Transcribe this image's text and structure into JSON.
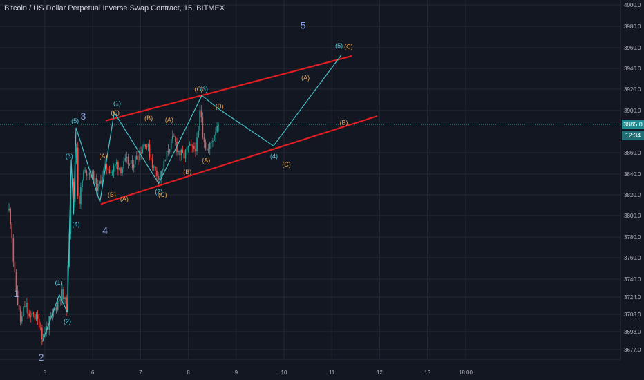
{
  "header": {
    "title": "Bitcoin / US Dollar Perpetual Inverse Swap Contract, 15, BITMEX"
  },
  "price_axis": {
    "current_price": "3885.0",
    "countdown": "12:34"
  },
  "colors": {
    "background": "#131722",
    "grid": "#242833",
    "axis_text": "#b2b5be",
    "candle_up": "#26a69a",
    "candle_down": "#ef5350",
    "wave_line": "#47c2c8",
    "channel": "#e01e22",
    "label_cyan": "#4dd0e1",
    "label_orange": "#e8a34f",
    "label_big": "#8ca2e6",
    "price_line": "#26a69a"
  },
  "chart_data": {
    "type": "candlestick",
    "title": "Bitcoin / US Dollar Perpetual Inverse Swap Contract, 15, BITMEX",
    "x_ticks": [
      "5",
      "6",
      "7",
      "8",
      "9",
      "10",
      "11",
      "12",
      "13",
      "18:00"
    ],
    "y_ticks": [
      "4000.0",
      "3980.0",
      "3960.0",
      "3940.0",
      "3920.0",
      "3900.0",
      "3885.0",
      "3860.0",
      "3840.0",
      "3820.0",
      "3800.0",
      "3780.0",
      "3760.0",
      "3740.0",
      "3724.0",
      "3708.0",
      "3693.0",
      "3677.0"
    ],
    "ylim": [
      3670,
      4003
    ],
    "current_price": 3885.0,
    "price_path": [
      {
        "x": 4.25,
        "y": 3805
      },
      {
        "x": 4.3,
        "y": 3790
      },
      {
        "x": 4.35,
        "y": 3750
      },
      {
        "x": 4.4,
        "y": 3730
      },
      {
        "x": 4.45,
        "y": 3712
      },
      {
        "x": 4.5,
        "y": 3700
      },
      {
        "x": 4.55,
        "y": 3712
      },
      {
        "x": 4.6,
        "y": 3718
      },
      {
        "x": 4.65,
        "y": 3708
      },
      {
        "x": 4.7,
        "y": 3702
      },
      {
        "x": 4.75,
        "y": 3712
      },
      {
        "x": 4.8,
        "y": 3705
      },
      {
        "x": 4.9,
        "y": 3700
      },
      {
        "x": 4.95,
        "y": 3688
      },
      {
        "x": 5.05,
        "y": 3698
      },
      {
        "x": 5.15,
        "y": 3706
      },
      {
        "x": 5.25,
        "y": 3718
      },
      {
        "x": 5.35,
        "y": 3728
      },
      {
        "x": 5.45,
        "y": 3715
      },
      {
        "x": 5.5,
        "y": 3770
      },
      {
        "x": 5.55,
        "y": 3852
      },
      {
        "x": 5.6,
        "y": 3810
      },
      {
        "x": 5.65,
        "y": 3880
      },
      {
        "x": 5.7,
        "y": 3808
      },
      {
        "x": 5.8,
        "y": 3840
      },
      {
        "x": 5.9,
        "y": 3843
      },
      {
        "x": 6.0,
        "y": 3838
      },
      {
        "x": 6.1,
        "y": 3825
      },
      {
        "x": 6.2,
        "y": 3840
      },
      {
        "x": 6.3,
        "y": 3848
      },
      {
        "x": 6.4,
        "y": 3842
      },
      {
        "x": 6.5,
        "y": 3850
      },
      {
        "x": 6.6,
        "y": 3845
      },
      {
        "x": 6.7,
        "y": 3852
      },
      {
        "x": 6.8,
        "y": 3848
      },
      {
        "x": 6.9,
        "y": 3855
      },
      {
        "x": 7.0,
        "y": 3862
      },
      {
        "x": 7.1,
        "y": 3870
      },
      {
        "x": 7.2,
        "y": 3858
      },
      {
        "x": 7.3,
        "y": 3842
      },
      {
        "x": 7.4,
        "y": 3838
      },
      {
        "x": 7.5,
        "y": 3850
      },
      {
        "x": 7.6,
        "y": 3866
      },
      {
        "x": 7.7,
        "y": 3872
      },
      {
        "x": 7.8,
        "y": 3860
      },
      {
        "x": 7.9,
        "y": 3856
      },
      {
        "x": 8.0,
        "y": 3864
      },
      {
        "x": 8.1,
        "y": 3862
      },
      {
        "x": 8.2,
        "y": 3870
      },
      {
        "x": 8.25,
        "y": 3905
      },
      {
        "x": 8.3,
        "y": 3878
      },
      {
        "x": 8.4,
        "y": 3860
      },
      {
        "x": 8.5,
        "y": 3872
      },
      {
        "x": 8.6,
        "y": 3885
      },
      {
        "x": 8.65,
        "y": 3890
      }
    ],
    "annotations": {
      "wave_path": [
        {
          "x": 4.95,
          "y": 3684
        },
        {
          "x": 5.3,
          "y": 3726
        },
        {
          "x": 5.47,
          "y": 3710
        },
        {
          "x": 5.55,
          "y": 3853
        },
        {
          "x": 5.6,
          "y": 3801
        },
        {
          "x": 5.65,
          "y": 3882
        },
        {
          "x": 6.15,
          "y": 3813
        },
        {
          "x": 6.45,
          "y": 3898
        },
        {
          "x": 7.38,
          "y": 3831
        },
        {
          "x": 8.28,
          "y": 3914
        },
        {
          "x": 8.65,
          "y": 3901
        },
        {
          "x": 9.78,
          "y": 3866
        },
        {
          "x": 11.2,
          "y": 3953
        }
      ],
      "channel_lines": [
        {
          "from": {
            "x": 6.27,
            "y": 3889
          },
          "to": {
            "x": 11.42,
            "y": 3952
          }
        },
        {
          "from": {
            "x": 6.17,
            "y": 3811
          },
          "to": {
            "x": 11.95,
            "y": 3894
          }
        }
      ],
      "labels": [
        {
          "text": "1",
          "x": 4.4,
          "y": 3727,
          "style": "big"
        },
        {
          "text": "2",
          "x": 4.92,
          "y": 3670,
          "style": "big"
        },
        {
          "text": "3",
          "x": 5.8,
          "y": 3894,
          "style": "big"
        },
        {
          "text": "4",
          "x": 6.26,
          "y": 3786,
          "style": "big"
        },
        {
          "text": "5",
          "x": 10.4,
          "y": 3981,
          "style": "big"
        },
        {
          "text": "(1)",
          "x": 5.29,
          "y": 3737,
          "style": "cyan"
        },
        {
          "text": "(2)",
          "x": 5.47,
          "y": 3702,
          "style": "cyan"
        },
        {
          "text": "(3)",
          "x": 5.51,
          "y": 3857,
          "style": "cyan"
        },
        {
          "text": "(5)",
          "x": 5.63,
          "y": 3889,
          "style": "cyan"
        },
        {
          "text": "(4)",
          "x": 5.65,
          "y": 3792,
          "style": "cyan"
        },
        {
          "text": "(1)",
          "x": 6.51,
          "y": 3907,
          "style": "cyan"
        },
        {
          "text": "(2)",
          "x": 7.38,
          "y": 3823,
          "style": "cyan"
        },
        {
          "text": "(3)",
          "x": 8.33,
          "y": 3920,
          "style": "cyan"
        },
        {
          "text": "(4)",
          "x": 9.79,
          "y": 3857,
          "style": "cyan"
        },
        {
          "text": "(5)",
          "x": 11.15,
          "y": 3962,
          "style": "cyan"
        },
        {
          "text": "(A)",
          "x": 6.22,
          "y": 3857,
          "style": "orange"
        },
        {
          "text": "(B)",
          "x": 6.4,
          "y": 3820,
          "style": "orange"
        },
        {
          "text": "(A)",
          "x": 6.66,
          "y": 3816,
          "style": "orange"
        },
        {
          "text": "(C)",
          "x": 6.47,
          "y": 3898,
          "style": "orange"
        },
        {
          "text": "(B)",
          "x": 7.17,
          "y": 3892,
          "style": "orange"
        },
        {
          "text": "(A)",
          "x": 7.6,
          "y": 3890,
          "style": "orange"
        },
        {
          "text": "(C)",
          "x": 7.46,
          "y": 3820,
          "style": "orange"
        },
        {
          "text": "(C)",
          "x": 8.22,
          "y": 3920,
          "style": "orange"
        },
        {
          "text": "(B)",
          "x": 8.65,
          "y": 3904,
          "style": "orange"
        },
        {
          "text": "(A)",
          "x": 8.37,
          "y": 3853,
          "style": "orange"
        },
        {
          "text": "(B)",
          "x": 7.98,
          "y": 3842,
          "style": "orange"
        },
        {
          "text": "(A)",
          "x": 10.45,
          "y": 3931,
          "style": "orange"
        },
        {
          "text": "(B)",
          "x": 11.25,
          "y": 3887,
          "style": "orange"
        },
        {
          "text": "(C)",
          "x": 10.05,
          "y": 3849,
          "style": "orange"
        },
        {
          "text": "(C)",
          "x": 11.35,
          "y": 3961,
          "style": "orange"
        }
      ]
    }
  }
}
